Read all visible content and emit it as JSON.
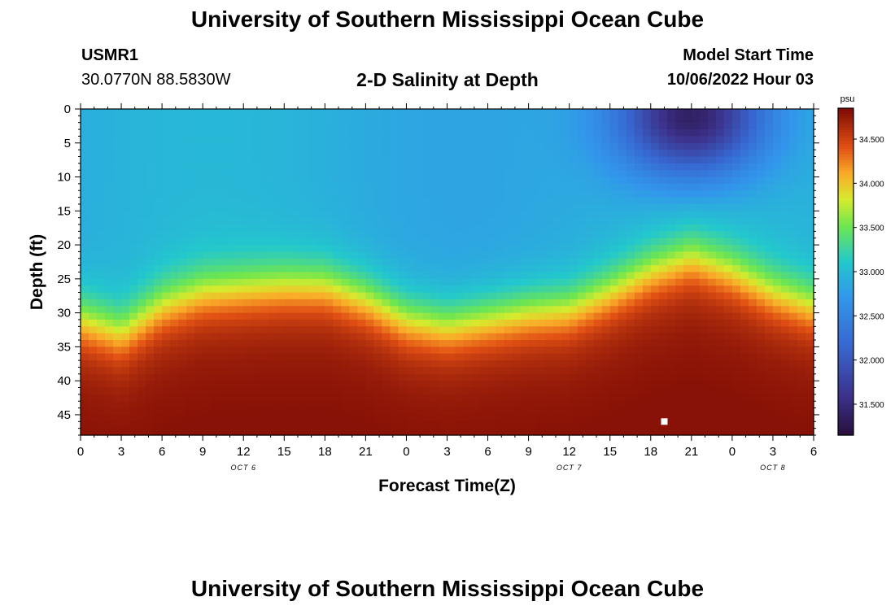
{
  "header": {
    "title": "University of Southern Mississippi Ocean Cube",
    "station_id": "USMR1",
    "coords": "30.0770N  88.5830W",
    "plot_title": "2-D Salinity at Depth",
    "start_label": "Model Start Time",
    "start_value": "10/06/2022 Hour 03"
  },
  "footer": {
    "title": "University of Southern Mississippi Ocean Cube"
  },
  "chart_data": {
    "type": "heatmap",
    "title": "2-D Salinity at Depth",
    "xlabel": "Forecast Time(Z)",
    "ylabel": "Depth (ft)",
    "x_ticks": [
      "0",
      "3",
      "6",
      "9",
      "12",
      "15",
      "18",
      "21",
      "0",
      "3",
      "6",
      "9",
      "12",
      "15",
      "18",
      "21",
      "0",
      "3",
      "6"
    ],
    "x_range_hours": [
      0,
      54
    ],
    "date_labels": [
      {
        "text": "OCT 6",
        "hour": 12
      },
      {
        "text": "OCT 7",
        "hour": 36
      },
      {
        "text": "OCT 8",
        "hour": 51
      }
    ],
    "y_ticks": [
      "0",
      "5",
      "10",
      "15",
      "20",
      "25",
      "30",
      "35",
      "40",
      "45"
    ],
    "y_range_ft": [
      0,
      48
    ],
    "y_inverted": true,
    "colorbar": {
      "unit": "psu",
      "range": [
        31.15,
        34.85
      ],
      "tick_labels": [
        "34.500",
        "34.000",
        "33.500",
        "33.000",
        "32.500",
        "32.000",
        "31.500"
      ],
      "tick_values": [
        34.5,
        34.0,
        33.5,
        33.0,
        32.5,
        32.0,
        31.5
      ]
    },
    "surface_salinity_psu": 32.9,
    "bottom_salinity_psu": 34.8,
    "halocline_depth_ft": [
      [
        0,
        31
      ],
      [
        3,
        33
      ],
      [
        6,
        29
      ],
      [
        9,
        27
      ],
      [
        12,
        26.5
      ],
      [
        15,
        26
      ],
      [
        18,
        26
      ],
      [
        21,
        28
      ],
      [
        24,
        31
      ],
      [
        27,
        32
      ],
      [
        30,
        31
      ],
      [
        33,
        30
      ],
      [
        36,
        29.5
      ],
      [
        39,
        27
      ],
      [
        42,
        24
      ],
      [
        45,
        22
      ],
      [
        48,
        24
      ],
      [
        51,
        27
      ],
      [
        54,
        29
      ]
    ],
    "low_salinity_core": {
      "hour": 45,
      "depth_ft": 1,
      "salinity_psu": 31.3
    },
    "marker": {
      "hour": 43,
      "depth_ft": 46
    }
  }
}
